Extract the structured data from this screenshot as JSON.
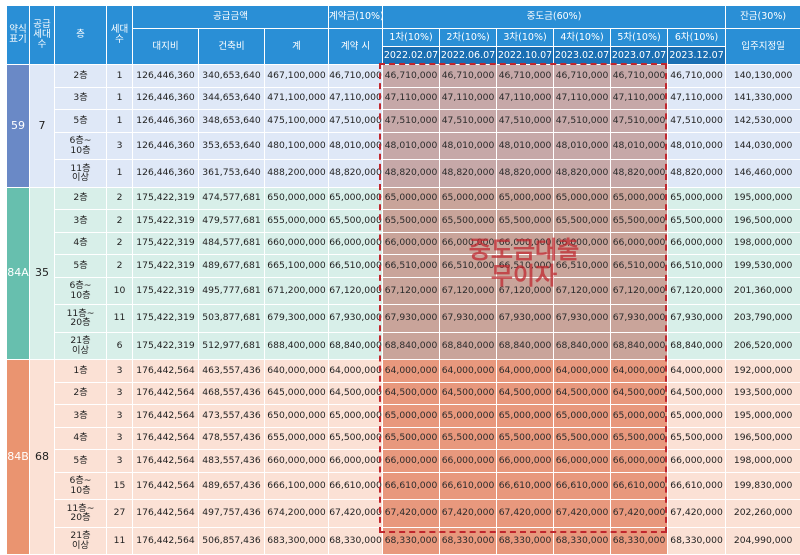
{
  "header": {
    "type_label": "약식\n표기",
    "supply_count_label": "공급\n세대\n수",
    "floor_label": "층",
    "household_label": "세대\n수",
    "supply_price_label": "공급금액",
    "land_label": "대지비",
    "building_label": "건축비",
    "total_label": "계",
    "contract_label": "계약금(10%)",
    "contract_time_label": "계약 시",
    "middle_label": "중도금(60%)",
    "balance_label": "잔금(30%)",
    "balance_time_label": "입주지정일",
    "installments": [
      {
        "label": "1차(10%)",
        "date": "2022.02.07"
      },
      {
        "label": "2차(10%)",
        "date": "2022.06.07"
      },
      {
        "label": "3차(10%)",
        "date": "2022.10.07"
      },
      {
        "label": "4차(10%)",
        "date": "2023.02.07"
      },
      {
        "label": "5차(10%)",
        "date": "2023.07.07"
      },
      {
        "label": "6차(10%)",
        "date": "2023.12.07"
      }
    ]
  },
  "overlay_text": "중도금대출\n무이자",
  "groups": [
    {
      "type": "59",
      "supply": "7",
      "rows": [
        {
          "floor": "2층",
          "units": "1",
          "land": "126,446,360",
          "building": "340,653,640",
          "total": "467,100,000",
          "contract": "46,710,000",
          "m": [
            "46,710,000",
            "46,710,000",
            "46,710,000",
            "46,710,000",
            "46,710,000",
            "46,710,000"
          ],
          "balance": "140,130,000"
        },
        {
          "floor": "3층",
          "units": "1",
          "land": "126,446,360",
          "building": "344,653,640",
          "total": "471,100,000",
          "contract": "47,110,000",
          "m": [
            "47,110,000",
            "47,110,000",
            "47,110,000",
            "47,110,000",
            "47,110,000",
            "47,110,000"
          ],
          "balance": "141,330,000"
        },
        {
          "floor": "5층",
          "units": "1",
          "land": "126,446,360",
          "building": "348,653,640",
          "total": "475,100,000",
          "contract": "47,510,000",
          "m": [
            "47,510,000",
            "47,510,000",
            "47,510,000",
            "47,510,000",
            "47,510,000",
            "47,510,000"
          ],
          "balance": "142,530,000"
        },
        {
          "floor": "6층~\n10층",
          "units": "3",
          "land": "126,446,360",
          "building": "353,653,640",
          "total": "480,100,000",
          "contract": "48,010,000",
          "m": [
            "48,010,000",
            "48,010,000",
            "48,010,000",
            "48,010,000",
            "48,010,000",
            "48,010,000"
          ],
          "balance": "144,030,000"
        },
        {
          "floor": "11층\n이상",
          "units": "1",
          "land": "126,446,360",
          "building": "361,753,640",
          "total": "488,200,000",
          "contract": "48,820,000",
          "m": [
            "48,820,000",
            "48,820,000",
            "48,820,000",
            "48,820,000",
            "48,820,000",
            "48,820,000"
          ],
          "balance": "146,460,000"
        }
      ]
    },
    {
      "type": "84A",
      "supply": "35",
      "rows": [
        {
          "floor": "2층",
          "units": "2",
          "land": "175,422,319",
          "building": "474,577,681",
          "total": "650,000,000",
          "contract": "65,000,000",
          "m": [
            "65,000,000",
            "65,000,000",
            "65,000,000",
            "65,000,000",
            "65,000,000",
            "65,000,000"
          ],
          "balance": "195,000,000"
        },
        {
          "floor": "3층",
          "units": "2",
          "land": "175,422,319",
          "building": "479,577,681",
          "total": "655,000,000",
          "contract": "65,500,000",
          "m": [
            "65,500,000",
            "65,500,000",
            "65,500,000",
            "65,500,000",
            "65,500,000",
            "65,500,000"
          ],
          "balance": "196,500,000"
        },
        {
          "floor": "4층",
          "units": "2",
          "land": "175,422,319",
          "building": "484,577,681",
          "total": "660,000,000",
          "contract": "66,000,000",
          "m": [
            "66,000,000",
            "66,000,000",
            "66,000,000",
            "66,000,000",
            "66,000,000",
            "66,000,000"
          ],
          "balance": "198,000,000"
        },
        {
          "floor": "5층",
          "units": "2",
          "land": "175,422,319",
          "building": "489,677,681",
          "total": "665,100,000",
          "contract": "66,510,000",
          "m": [
            "66,510,000",
            "66,510,000",
            "66,510,000",
            "66,510,000",
            "66,510,000",
            "66,510,000"
          ],
          "balance": "199,530,000"
        },
        {
          "floor": "6층~\n10층",
          "units": "10",
          "land": "175,422,319",
          "building": "495,777,681",
          "total": "671,200,000",
          "contract": "67,120,000",
          "m": [
            "67,120,000",
            "67,120,000",
            "67,120,000",
            "67,120,000",
            "67,120,000",
            "67,120,000"
          ],
          "balance": "201,360,000"
        },
        {
          "floor": "11층~\n20층",
          "units": "11",
          "land": "175,422,319",
          "building": "503,877,681",
          "total": "679,300,000",
          "contract": "67,930,000",
          "m": [
            "67,930,000",
            "67,930,000",
            "67,930,000",
            "67,930,000",
            "67,930,000",
            "67,930,000"
          ],
          "balance": "203,790,000"
        },
        {
          "floor": "21층\n이상",
          "units": "6",
          "land": "175,422,319",
          "building": "512,977,681",
          "total": "688,400,000",
          "contract": "68,840,000",
          "m": [
            "68,840,000",
            "68,840,000",
            "68,840,000",
            "68,840,000",
            "68,840,000",
            "68,840,000"
          ],
          "balance": "206,520,000"
        }
      ]
    },
    {
      "type": "84B",
      "supply": "68",
      "rows": [
        {
          "floor": "1층",
          "units": "3",
          "land": "176,442,564",
          "building": "463,557,436",
          "total": "640,000,000",
          "contract": "64,000,000",
          "m": [
            "64,000,000",
            "64,000,000",
            "64,000,000",
            "64,000,000",
            "64,000,000",
            "64,000,000"
          ],
          "balance": "192,000,000"
        },
        {
          "floor": "2층",
          "units": "3",
          "land": "176,442,564",
          "building": "468,557,436",
          "total": "645,000,000",
          "contract": "64,500,000",
          "m": [
            "64,500,000",
            "64,500,000",
            "64,500,000",
            "64,500,000",
            "64,500,000",
            "64,500,000"
          ],
          "balance": "193,500,000"
        },
        {
          "floor": "3층",
          "units": "3",
          "land": "176,442,564",
          "building": "473,557,436",
          "total": "650,000,000",
          "contract": "65,000,000",
          "m": [
            "65,000,000",
            "65,000,000",
            "65,000,000",
            "65,000,000",
            "65,000,000",
            "65,000,000"
          ],
          "balance": "195,000,000"
        },
        {
          "floor": "4층",
          "units": "3",
          "land": "176,442,564",
          "building": "478,557,436",
          "total": "655,000,000",
          "contract": "65,500,000",
          "m": [
            "65,500,000",
            "65,500,000",
            "65,500,000",
            "65,500,000",
            "65,500,000",
            "65,500,000"
          ],
          "balance": "196,500,000"
        },
        {
          "floor": "5층",
          "units": "3",
          "land": "176,442,564",
          "building": "483,557,436",
          "total": "660,000,000",
          "contract": "66,000,000",
          "m": [
            "66,000,000",
            "66,000,000",
            "66,000,000",
            "66,000,000",
            "66,000,000",
            "66,000,000"
          ],
          "balance": "198,000,000"
        },
        {
          "floor": "6층~\n10층",
          "units": "15",
          "land": "176,442,564",
          "building": "489,657,436",
          "total": "666,100,000",
          "contract": "66,610,000",
          "m": [
            "66,610,000",
            "66,610,000",
            "66,610,000",
            "66,610,000",
            "66,610,000",
            "66,610,000"
          ],
          "balance": "199,830,000"
        },
        {
          "floor": "11층~\n20층",
          "units": "27",
          "land": "176,442,564",
          "building": "497,757,436",
          "total": "674,200,000",
          "contract": "67,420,000",
          "m": [
            "67,420,000",
            "67,420,000",
            "67,420,000",
            "67,420,000",
            "67,420,000",
            "67,420,000"
          ],
          "balance": "202,260,000"
        },
        {
          "floor": "21층\n이상",
          "units": "11",
          "land": "176,442,564",
          "building": "506,857,436",
          "total": "683,300,000",
          "contract": "68,330,000",
          "m": [
            "68,330,000",
            "68,330,000",
            "68,330,000",
            "68,330,000",
            "68,330,000",
            "68,330,000"
          ],
          "balance": "204,990,000"
        }
      ]
    }
  ]
}
